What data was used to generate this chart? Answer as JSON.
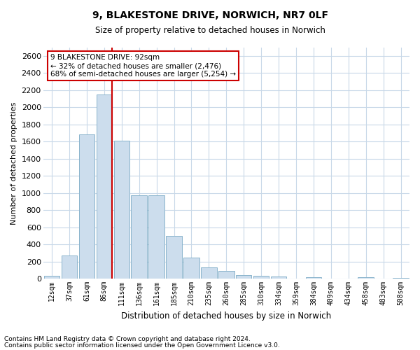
{
  "title1": "9, BLAKESTONE DRIVE, NORWICH, NR7 0LF",
  "title2": "Size of property relative to detached houses in Norwich",
  "xlabel": "Distribution of detached houses by size in Norwich",
  "ylabel": "Number of detached properties",
  "categories": [
    "12sqm",
    "37sqm",
    "61sqm",
    "86sqm",
    "111sqm",
    "136sqm",
    "161sqm",
    "185sqm",
    "210sqm",
    "235sqm",
    "260sqm",
    "285sqm",
    "310sqm",
    "334sqm",
    "359sqm",
    "384sqm",
    "409sqm",
    "434sqm",
    "458sqm",
    "483sqm",
    "508sqm"
  ],
  "values": [
    30,
    270,
    1680,
    2150,
    1610,
    970,
    970,
    500,
    245,
    130,
    95,
    40,
    35,
    25,
    0,
    20,
    0,
    0,
    20,
    0,
    10
  ],
  "bar_color": "#ccdded",
  "bar_edge_color": "#8ab4cc",
  "vline_color": "#cc0000",
  "annotation_text": "9 BLAKESTONE DRIVE: 92sqm\n← 32% of detached houses are smaller (2,476)\n68% of semi-detached houses are larger (5,254) →",
  "annotation_box_color": "#ffffff",
  "annotation_box_edge": "#cc0000",
  "ylim": [
    0,
    2700
  ],
  "yticks": [
    0,
    200,
    400,
    600,
    800,
    1000,
    1200,
    1400,
    1600,
    1800,
    2000,
    2200,
    2400,
    2600
  ],
  "footnote1": "Contains HM Land Registry data © Crown copyright and database right 2024.",
  "footnote2": "Contains public sector information licensed under the Open Government Licence v3.0.",
  "bg_color": "#ffffff",
  "grid_color": "#c8d8e8"
}
